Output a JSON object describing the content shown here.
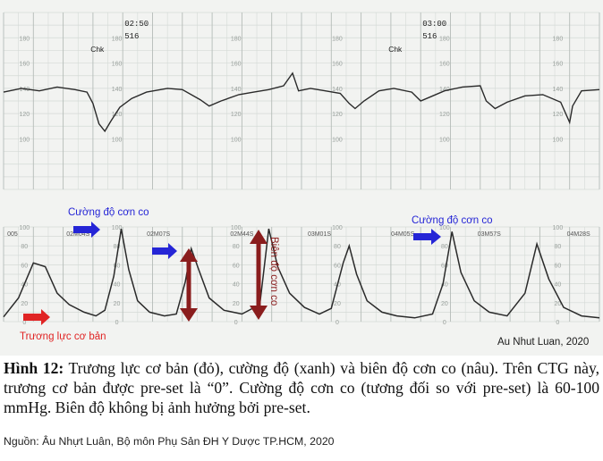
{
  "chart_data": [
    {
      "type": "line",
      "name": "fetal-heart-rate",
      "x_unit": "min",
      "xlim": [
        0,
        20
      ],
      "ylim": [
        60,
        200
      ],
      "y_ticks": [
        100,
        120,
        140,
        160,
        180
      ],
      "grid": true,
      "time_marks": [
        {
          "t": 4.0,
          "time_label": "02:50",
          "code_label": "516",
          "check_label": "Chk"
        },
        {
          "t": 14.0,
          "time_label": "03:00",
          "code_label": "516",
          "check_label": "Chk"
        }
      ],
      "points": [
        [
          0,
          137
        ],
        [
          0.6,
          140
        ],
        [
          1.2,
          138
        ],
        [
          1.8,
          141
        ],
        [
          2.4,
          139
        ],
        [
          2.8,
          137
        ],
        [
          3.0,
          128
        ],
        [
          3.2,
          112
        ],
        [
          3.4,
          106
        ],
        [
          3.6,
          114
        ],
        [
          3.9,
          125
        ],
        [
          4.3,
          132
        ],
        [
          4.8,
          137
        ],
        [
          5.5,
          140
        ],
        [
          6.0,
          139
        ],
        [
          6.6,
          131
        ],
        [
          6.9,
          126
        ],
        [
          7.3,
          130
        ],
        [
          7.9,
          135
        ],
        [
          8.4,
          137
        ],
        [
          8.9,
          139
        ],
        [
          9.4,
          142
        ],
        [
          9.7,
          152
        ],
        [
          9.9,
          138
        ],
        [
          10.3,
          140
        ],
        [
          10.8,
          138
        ],
        [
          11.3,
          136
        ],
        [
          11.6,
          128
        ],
        [
          11.8,
          124
        ],
        [
          12.1,
          130
        ],
        [
          12.6,
          138
        ],
        [
          13.1,
          140
        ],
        [
          13.7,
          137
        ],
        [
          14.0,
          130
        ],
        [
          14.3,
          133
        ],
        [
          14.8,
          138
        ],
        [
          15.4,
          141
        ],
        [
          16.0,
          142
        ],
        [
          16.2,
          130
        ],
        [
          16.5,
          124
        ],
        [
          16.9,
          129
        ],
        [
          17.5,
          134
        ],
        [
          18.1,
          135
        ],
        [
          18.7,
          129
        ],
        [
          19.0,
          113
        ],
        [
          19.1,
          126
        ],
        [
          19.4,
          138
        ],
        [
          20,
          139
        ]
      ]
    },
    {
      "type": "line",
      "name": "uterine-activity",
      "x_unit": "min",
      "xlim": [
        0,
        20
      ],
      "ylim": [
        0,
        100
      ],
      "y_ticks": [
        0,
        20,
        40,
        60,
        80,
        100
      ],
      "grid": true,
      "x_tick_labels": [
        {
          "t": 0.3,
          "label": "005"
        },
        {
          "t": 2.5,
          "label": "02M04S"
        },
        {
          "t": 5.2,
          "label": "02M07S"
        },
        {
          "t": 8.0,
          "label": "02M44S"
        },
        {
          "t": 10.6,
          "label": "03M01S"
        },
        {
          "t": 13.4,
          "label": "04M05S"
        },
        {
          "t": 16.3,
          "label": "03M57S"
        },
        {
          "t": 19.3,
          "label": "04M28S"
        }
      ],
      "points": [
        [
          0,
          5
        ],
        [
          0.5,
          25
        ],
        [
          1.0,
          62
        ],
        [
          1.4,
          58
        ],
        [
          1.8,
          30
        ],
        [
          2.2,
          18
        ],
        [
          2.7,
          10
        ],
        [
          3.1,
          6
        ],
        [
          3.4,
          12
        ],
        [
          3.7,
          48
        ],
        [
          3.95,
          98
        ],
        [
          4.2,
          55
        ],
        [
          4.5,
          22
        ],
        [
          4.9,
          10
        ],
        [
          5.4,
          6
        ],
        [
          5.8,
          8
        ],
        [
          6.1,
          42
        ],
        [
          6.3,
          77
        ],
        [
          6.55,
          55
        ],
        [
          6.9,
          25
        ],
        [
          7.4,
          12
        ],
        [
          8.0,
          8
        ],
        [
          8.6,
          18
        ],
        [
          8.9,
          98
        ],
        [
          9.2,
          58
        ],
        [
          9.6,
          30
        ],
        [
          10.1,
          15
        ],
        [
          10.6,
          8
        ],
        [
          11.0,
          14
        ],
        [
          11.4,
          62
        ],
        [
          11.6,
          80
        ],
        [
          11.85,
          50
        ],
        [
          12.2,
          22
        ],
        [
          12.7,
          10
        ],
        [
          13.2,
          6
        ],
        [
          13.8,
          4
        ],
        [
          14.4,
          8
        ],
        [
          14.75,
          40
        ],
        [
          15.05,
          95
        ],
        [
          15.35,
          52
        ],
        [
          15.8,
          22
        ],
        [
          16.3,
          10
        ],
        [
          16.9,
          6
        ],
        [
          17.5,
          30
        ],
        [
          17.9,
          82
        ],
        [
          18.3,
          45
        ],
        [
          18.8,
          15
        ],
        [
          19.4,
          6
        ],
        [
          20,
          4
        ]
      ]
    }
  ],
  "annotations": {
    "intensity_top": "Cường độ cơn co",
    "intensity_right": "Cường độ cơn co",
    "amplitude": "Biên độ cơn co",
    "baseline_tone": "Trương lực cơ bản",
    "watermark": "Au Nhut Luan, 2020"
  },
  "colors": {
    "blue_arrow": "#2525d6",
    "red_arrow": "#e02424",
    "brown_arrow": "#8a1d1d",
    "trace": "#2a2a2a",
    "grid_minor": "#d4dad6",
    "grid_major": "#b5bcb8"
  },
  "caption": {
    "label": "Hình 12:",
    "text": " Trương lực cơ bản (đỏ), cường độ (xanh) và biên độ cơn co (nâu). Trên CTG này, trương cơ bản được pre-set là “0”. Cường độ cơn co (tương đối so với pre-set) là 60-100 mmHg. Biên độ không bị ảnh hưởng bởi  pre-set."
  },
  "source": "Nguồn: Âu Nhựt Luân, Bộ môn Phụ Sản ĐH Y Dược TP.HCM, 2020"
}
